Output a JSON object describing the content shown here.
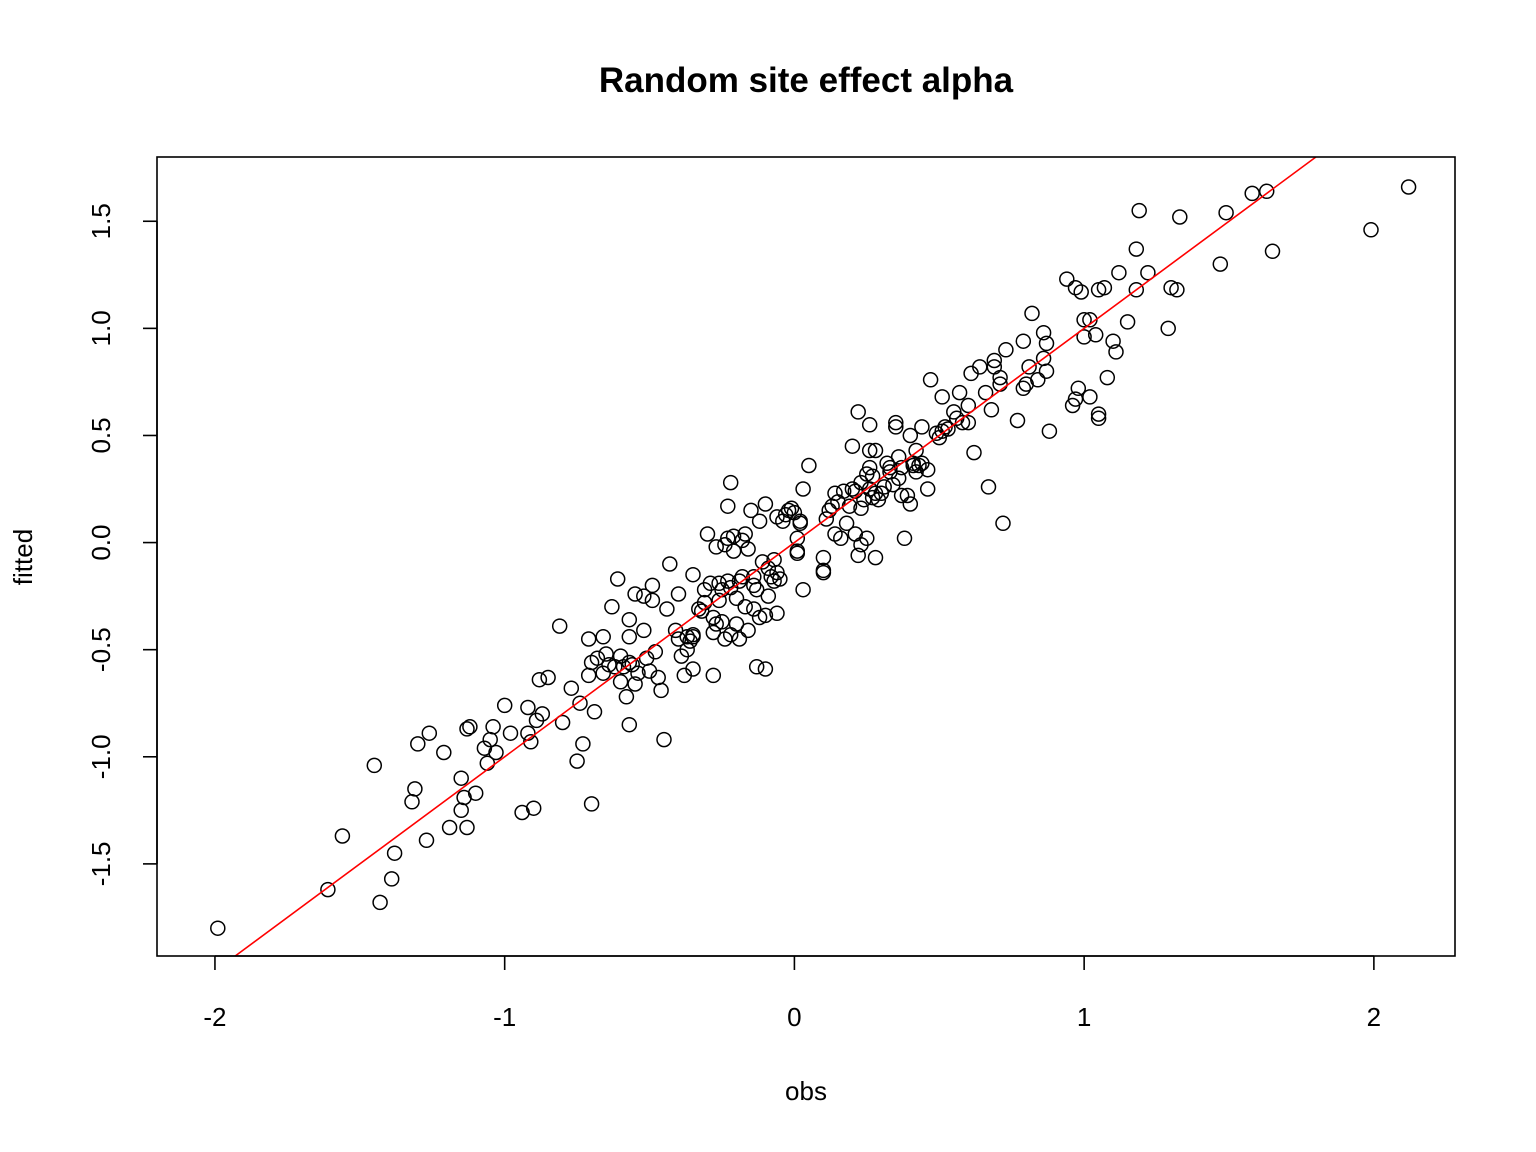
{
  "chart_data": {
    "type": "scatter",
    "title": "Random site effect alpha",
    "xlabel": "obs",
    "ylabel": "fitted",
    "xlim": [
      -2.2,
      2.28
    ],
    "ylim": [
      -1.93,
      1.8
    ],
    "x_ticks": [
      -2,
      -1,
      0,
      1,
      2
    ],
    "x_tick_labels": [
      "-2",
      "-1",
      "0",
      "1",
      "2"
    ],
    "y_ticks": [
      -1.5,
      -1.0,
      -0.5,
      0.0,
      0.5,
      1.0,
      1.5
    ],
    "y_tick_labels": [
      "-1.5",
      "-1.0",
      "-0.5",
      "0.0",
      "0.5",
      "1.0",
      "1.5"
    ],
    "grid": false,
    "marker": "open-circle",
    "point_color": "#000000",
    "reference_line": {
      "slope": 1,
      "intercept": 0,
      "color": "#ff0000"
    },
    "points": [
      [
        -1.99,
        -1.8
      ],
      [
        -1.61,
        -1.62
      ],
      [
        -1.56,
        -1.37
      ],
      [
        -1.45,
        -1.04
      ],
      [
        -1.43,
        -1.68
      ],
      [
        -1.39,
        -1.57
      ],
      [
        -1.38,
        -1.45
      ],
      [
        -1.31,
        -1.15
      ],
      [
        -1.32,
        -1.21
      ],
      [
        -1.3,
        -0.94
      ],
      [
        -1.27,
        -1.39
      ],
      [
        -1.26,
        -0.89
      ],
      [
        -1.21,
        -0.98
      ],
      [
        -1.19,
        -1.33
      ],
      [
        -1.15,
        -1.25
      ],
      [
        -1.14,
        -1.19
      ],
      [
        -1.15,
        -1.1
      ],
      [
        -1.13,
        -0.87
      ],
      [
        -1.12,
        -0.86
      ],
      [
        -1.1,
        -1.17
      ],
      [
        -1.13,
        -1.33
      ],
      [
        -1.07,
        -0.96
      ],
      [
        -1.06,
        -1.03
      ],
      [
        -1.05,
        -0.92
      ],
      [
        -1.04,
        -0.86
      ],
      [
        -1.03,
        -0.98
      ],
      [
        -1.0,
        -0.76
      ],
      [
        -0.98,
        -0.89
      ],
      [
        -0.94,
        -1.26
      ],
      [
        -0.92,
        -0.89
      ],
      [
        -0.92,
        -0.77
      ],
      [
        -0.91,
        -0.93
      ],
      [
        -0.9,
        -1.24
      ],
      [
        -0.89,
        -0.83
      ],
      [
        -0.88,
        -0.64
      ],
      [
        -0.87,
        -0.8
      ],
      [
        -0.85,
        -0.63
      ],
      [
        -0.81,
        -0.39
      ],
      [
        -0.8,
        -0.84
      ],
      [
        -0.77,
        -0.68
      ],
      [
        -0.75,
        -1.02
      ],
      [
        -0.74,
        -0.75
      ],
      [
        -0.73,
        -0.94
      ],
      [
        -0.71,
        -0.45
      ],
      [
        -0.71,
        -0.62
      ],
      [
        -0.7,
        -1.22
      ],
      [
        -0.7,
        -0.56
      ],
      [
        -0.69,
        -0.79
      ],
      [
        -0.68,
        -0.54
      ],
      [
        -0.66,
        -0.61
      ],
      [
        -0.66,
        -0.44
      ],
      [
        -0.65,
        -0.52
      ],
      [
        -0.64,
        -0.57
      ],
      [
        -0.63,
        -0.3
      ],
      [
        -0.62,
        -0.58
      ],
      [
        -0.61,
        -0.17
      ],
      [
        -0.6,
        -0.53
      ],
      [
        -0.6,
        -0.65
      ],
      [
        -0.59,
        -0.58
      ],
      [
        -0.58,
        -0.72
      ],
      [
        -0.57,
        -0.85
      ],
      [
        -0.57,
        -0.56
      ],
      [
        -0.57,
        -0.44
      ],
      [
        -0.57,
        -0.36
      ],
      [
        -0.56,
        -0.57
      ],
      [
        -0.55,
        -0.24
      ],
      [
        -0.55,
        -0.66
      ],
      [
        -0.54,
        -0.61
      ],
      [
        -0.52,
        -0.41
      ],
      [
        -0.52,
        -0.25
      ],
      [
        -0.51,
        -0.54
      ],
      [
        -0.5,
        -0.6
      ],
      [
        -0.49,
        -0.27
      ],
      [
        -0.49,
        -0.2
      ],
      [
        -0.48,
        -0.51
      ],
      [
        -0.47,
        -0.63
      ],
      [
        -0.46,
        -0.69
      ],
      [
        -0.45,
        -0.92
      ],
      [
        -0.44,
        -0.31
      ],
      [
        -0.43,
        -0.1
      ],
      [
        -0.41,
        -0.41
      ],
      [
        -0.4,
        -0.24
      ],
      [
        -0.4,
        -0.45
      ],
      [
        -0.39,
        -0.53
      ],
      [
        -0.38,
        -0.62
      ],
      [
        -0.37,
        -0.44
      ],
      [
        -0.37,
        -0.5
      ],
      [
        -0.36,
        -0.46
      ],
      [
        -0.35,
        -0.59
      ],
      [
        -0.35,
        -0.43
      ],
      [
        -0.35,
        -0.44
      ],
      [
        -0.35,
        -0.15
      ],
      [
        -0.33,
        -0.31
      ],
      [
        -0.32,
        -0.32
      ],
      [
        -0.31,
        -0.28
      ],
      [
        -0.31,
        -0.22
      ],
      [
        -0.3,
        0.04
      ],
      [
        -0.29,
        -0.19
      ],
      [
        -0.28,
        -0.35
      ],
      [
        -0.28,
        -0.42
      ],
      [
        -0.28,
        -0.62
      ],
      [
        -0.27,
        -0.02
      ],
      [
        -0.27,
        -0.38
      ],
      [
        -0.26,
        -0.27
      ],
      [
        -0.26,
        -0.19
      ],
      [
        -0.25,
        -0.37
      ],
      [
        -0.25,
        -0.22
      ],
      [
        -0.24,
        -0.45
      ],
      [
        -0.24,
        -0.01
      ],
      [
        -0.23,
        -0.18
      ],
      [
        -0.23,
        0.17
      ],
      [
        -0.23,
        0.02
      ],
      [
        -0.22,
        -0.43
      ],
      [
        -0.22,
        0.28
      ],
      [
        -0.22,
        -0.21
      ],
      [
        -0.21,
        -0.04
      ],
      [
        -0.21,
        0.03
      ],
      [
        -0.2,
        -0.38
      ],
      [
        -0.2,
        -0.26
      ],
      [
        -0.19,
        -0.45
      ],
      [
        -0.19,
        -0.18
      ],
      [
        -0.18,
        0.01
      ],
      [
        -0.18,
        -0.16
      ],
      [
        -0.17,
        -0.3
      ],
      [
        -0.17,
        0.04
      ],
      [
        -0.16,
        -0.03
      ],
      [
        -0.16,
        -0.41
      ],
      [
        -0.15,
        0.15
      ],
      [
        -0.14,
        -0.2
      ],
      [
        -0.14,
        -0.16
      ],
      [
        -0.14,
        -0.31
      ],
      [
        -0.13,
        -0.58
      ],
      [
        -0.13,
        -0.22
      ],
      [
        -0.12,
        0.1
      ],
      [
        -0.12,
        -0.35
      ],
      [
        -0.11,
        -0.09
      ],
      [
        -0.1,
        0.18
      ],
      [
        -0.1,
        -0.59
      ],
      [
        -0.1,
        -0.34
      ],
      [
        -0.09,
        -0.12
      ],
      [
        -0.09,
        -0.25
      ],
      [
        -0.08,
        -0.16
      ],
      [
        -0.07,
        -0.18
      ],
      [
        -0.07,
        -0.08
      ],
      [
        -0.06,
        0.12
      ],
      [
        -0.06,
        -0.14
      ],
      [
        -0.06,
        -0.33
      ],
      [
        -0.05,
        -0.17
      ],
      [
        -0.04,
        0.1
      ],
      [
        -0.03,
        0.13
      ],
      [
        -0.02,
        0.15
      ],
      [
        -0.01,
        0.16
      ],
      [
        0.0,
        0.14
      ],
      [
        0.01,
        0.02
      ],
      [
        0.01,
        -0.04
      ],
      [
        0.01,
        -0.05
      ],
      [
        0.02,
        0.09
      ],
      [
        0.02,
        0.1
      ],
      [
        0.03,
        -0.22
      ],
      [
        0.03,
        0.25
      ],
      [
        0.05,
        0.36
      ],
      [
        0.1,
        -0.07
      ],
      [
        0.1,
        -0.14
      ],
      [
        0.1,
        -0.13
      ],
      [
        0.11,
        0.11
      ],
      [
        0.12,
        0.15
      ],
      [
        0.13,
        0.17
      ],
      [
        0.14,
        0.23
      ],
      [
        0.14,
        0.04
      ],
      [
        0.15,
        0.19
      ],
      [
        0.16,
        0.02
      ],
      [
        0.17,
        0.24
      ],
      [
        0.18,
        0.09
      ],
      [
        0.19,
        0.17
      ],
      [
        0.2,
        0.45
      ],
      [
        0.2,
        0.25
      ],
      [
        0.21,
        0.04
      ],
      [
        0.21,
        0.24
      ],
      [
        0.22,
        0.61
      ],
      [
        0.22,
        -0.06
      ],
      [
        0.23,
        0.16
      ],
      [
        0.23,
        0.28
      ],
      [
        0.23,
        -0.01
      ],
      [
        0.24,
        0.2
      ],
      [
        0.25,
        0.32
      ],
      [
        0.25,
        0.02
      ],
      [
        0.26,
        0.35
      ],
      [
        0.26,
        0.43
      ],
      [
        0.26,
        0.55
      ],
      [
        0.26,
        0.25
      ],
      [
        0.27,
        0.31
      ],
      [
        0.27,
        0.21
      ],
      [
        0.28,
        0.43
      ],
      [
        0.28,
        0.23
      ],
      [
        0.28,
        -0.07
      ],
      [
        0.29,
        0.2
      ],
      [
        0.3,
        0.23
      ],
      [
        0.31,
        0.26
      ],
      [
        0.32,
        0.37
      ],
      [
        0.33,
        0.33
      ],
      [
        0.33,
        0.35
      ],
      [
        0.34,
        0.27
      ],
      [
        0.35,
        0.56
      ],
      [
        0.35,
        0.54
      ],
      [
        0.36,
        0.4
      ],
      [
        0.36,
        0.3
      ],
      [
        0.37,
        0.22
      ],
      [
        0.37,
        0.35
      ],
      [
        0.38,
        0.02
      ],
      [
        0.39,
        0.22
      ],
      [
        0.4,
        0.18
      ],
      [
        0.4,
        0.5
      ],
      [
        0.41,
        0.37
      ],
      [
        0.41,
        0.36
      ],
      [
        0.42,
        0.43
      ],
      [
        0.42,
        0.33
      ],
      [
        0.43,
        0.36
      ],
      [
        0.44,
        0.37
      ],
      [
        0.44,
        0.54
      ],
      [
        0.46,
        0.34
      ],
      [
        0.46,
        0.25
      ],
      [
        0.47,
        0.76
      ],
      [
        0.49,
        0.51
      ],
      [
        0.5,
        0.49
      ],
      [
        0.51,
        0.68
      ],
      [
        0.51,
        0.52
      ],
      [
        0.52,
        0.54
      ],
      [
        0.53,
        0.53
      ],
      [
        0.55,
        0.61
      ],
      [
        0.56,
        0.58
      ],
      [
        0.57,
        0.7
      ],
      [
        0.58,
        0.56
      ],
      [
        0.6,
        0.56
      ],
      [
        0.6,
        0.64
      ],
      [
        0.61,
        0.79
      ],
      [
        0.62,
        0.42
      ],
      [
        0.64,
        0.82
      ],
      [
        0.66,
        0.7
      ],
      [
        0.67,
        0.26
      ],
      [
        0.68,
        0.62
      ],
      [
        0.69,
        0.82
      ],
      [
        0.69,
        0.85
      ],
      [
        0.71,
        0.77
      ],
      [
        0.71,
        0.74
      ],
      [
        0.72,
        0.09
      ],
      [
        0.73,
        0.9
      ],
      [
        0.77,
        0.57
      ],
      [
        0.79,
        0.72
      ],
      [
        0.79,
        0.94
      ],
      [
        0.8,
        0.74
      ],
      [
        0.81,
        0.82
      ],
      [
        0.82,
        1.07
      ],
      [
        0.84,
        0.76
      ],
      [
        0.86,
        0.86
      ],
      [
        0.86,
        0.98
      ],
      [
        0.87,
        0.93
      ],
      [
        0.87,
        0.8
      ],
      [
        0.88,
        0.52
      ],
      [
        0.94,
        1.23
      ],
      [
        0.96,
        0.64
      ],
      [
        0.97,
        0.67
      ],
      [
        0.97,
        1.19
      ],
      [
        0.98,
        0.72
      ],
      [
        0.99,
        1.17
      ],
      [
        1.0,
        1.04
      ],
      [
        1.0,
        0.96
      ],
      [
        1.02,
        1.04
      ],
      [
        1.02,
        0.68
      ],
      [
        1.04,
        0.97
      ],
      [
        1.05,
        1.18
      ],
      [
        1.05,
        0.58
      ],
      [
        1.05,
        0.6
      ],
      [
        1.07,
        1.19
      ],
      [
        1.08,
        0.77
      ],
      [
        1.1,
        0.94
      ],
      [
        1.11,
        0.89
      ],
      [
        1.12,
        1.26
      ],
      [
        1.15,
        1.03
      ],
      [
        1.18,
        1.37
      ],
      [
        1.18,
        1.18
      ],
      [
        1.19,
        1.55
      ],
      [
        1.22,
        1.26
      ],
      [
        1.29,
        1.0
      ],
      [
        1.3,
        1.19
      ],
      [
        1.32,
        1.18
      ],
      [
        1.33,
        1.52
      ],
      [
        1.47,
        1.3
      ],
      [
        1.49,
        1.54
      ],
      [
        1.58,
        1.63
      ],
      [
        1.63,
        1.64
      ],
      [
        1.65,
        1.36
      ],
      [
        1.99,
        1.46
      ],
      [
        2.12,
        1.66
      ]
    ]
  }
}
